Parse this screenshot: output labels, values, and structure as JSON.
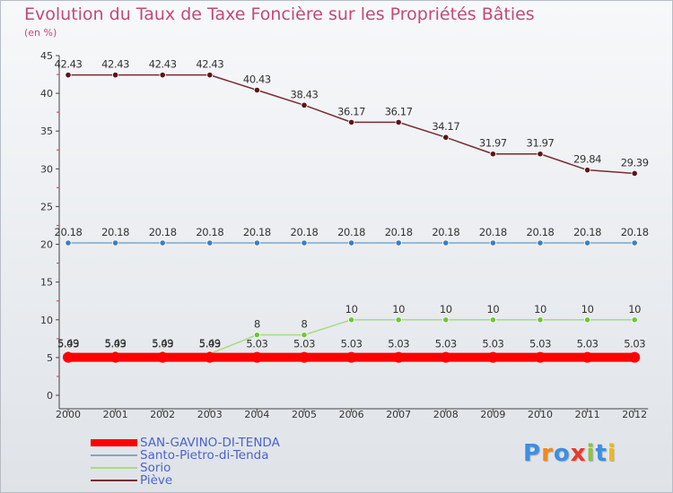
{
  "header": {
    "title": "Evolution du Taux de Taxe Foncière sur les Propriétés Bâties",
    "unit": "(en %)"
  },
  "logo_text": "Proxiti",
  "logo_colors": [
    "#3d8fe0",
    "#f08a1a",
    "#3d8fe0",
    "#e83a2a",
    "#8cc43c",
    "#3d8fe0",
    "#f0b81a"
  ],
  "chart_data": {
    "type": "line",
    "x": [
      "2000",
      "2001",
      "2002",
      "2003",
      "2004",
      "2005",
      "2006",
      "2007",
      "2008",
      "2009",
      "2010",
      "2011",
      "2012"
    ],
    "ylim": [
      0,
      45
    ],
    "yticks": [
      0,
      5,
      10,
      15,
      20,
      25,
      30,
      35,
      40,
      45
    ],
    "grid": false,
    "legend_position": "bottom-left",
    "series": [
      {
        "name": "Piève",
        "color": "#7a2a2f",
        "marker_color": "#5a1418",
        "values": [
          42.43,
          42.43,
          42.43,
          42.43,
          40.43,
          38.43,
          36.17,
          36.17,
          34.17,
          31.97,
          31.97,
          29.84,
          29.39
        ],
        "labels": [
          "42.43",
          "42.43",
          "42.43",
          "42.43",
          "40.43",
          "38.43",
          "36.17",
          "36.17",
          "34.17",
          "31.97",
          "31.97",
          "29.84",
          "29.39"
        ]
      },
      {
        "name": "Santo-Pietro-di-Tenda",
        "color": "#7ea6c8",
        "marker_color": "#3d7fc0",
        "values": [
          20.18,
          20.18,
          20.18,
          20.18,
          20.18,
          20.18,
          20.18,
          20.18,
          20.18,
          20.18,
          20.18,
          20.18,
          20.18
        ],
        "labels": [
          "20.18",
          "20.18",
          "20.18",
          "20.18",
          "20.18",
          "20.18",
          "20.18",
          "20.18",
          "20.18",
          "20.18",
          "20.18",
          "20.18",
          "20.18"
        ]
      },
      {
        "name": "Sorio",
        "color": "#a6dc82",
        "marker_color": "#6cc63a",
        "values": [
          5.49,
          5.49,
          5.49,
          5.49,
          8,
          8,
          10,
          10,
          10,
          10,
          10,
          10,
          10
        ],
        "labels": [
          "5.49",
          "5.49",
          "5.49",
          "5.49",
          "8",
          "8",
          "10",
          "10",
          "10",
          "10",
          "10",
          "10",
          "10"
        ]
      },
      {
        "name": "SAN-GAVINO-DI-TENDA",
        "color": "#ff0000",
        "marker_color": "#ff0000",
        "values": [
          5.03,
          5.03,
          5.03,
          5.03,
          5.03,
          5.03,
          5.03,
          5.03,
          5.03,
          5.03,
          5.03,
          5.03,
          5.03
        ],
        "labels": [
          "5.03",
          "5.03",
          "5.03",
          "5.03",
          "5.03",
          "5.03",
          "5.03",
          "5.03",
          "5.03",
          "5.03",
          "5.03",
          "5.03",
          "5.03"
        ]
      }
    ],
    "legend_order": [
      "SAN-GAVINO-DI-TENDA",
      "Santo-Pietro-di-Tenda",
      "Sorio",
      "Piève"
    ]
  }
}
